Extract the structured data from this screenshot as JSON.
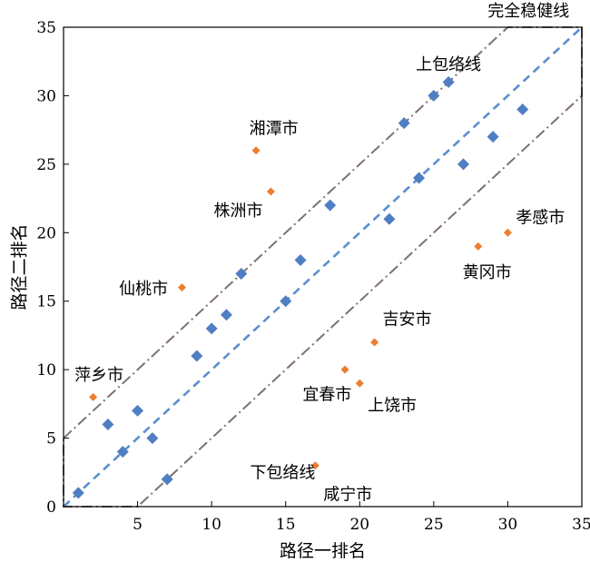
{
  "chart_data": {
    "type": "scatter",
    "title": "",
    "xlabel": "路径一排名",
    "ylabel": "路径二排名",
    "xlim": [
      0,
      35
    ],
    "ylim": [
      0,
      35
    ],
    "xticks": [
      "5",
      "10",
      "15",
      "20",
      "25",
      "30",
      "35"
    ],
    "yticks": [
      "0",
      "5",
      "10",
      "15",
      "20",
      "25",
      "30",
      "35"
    ],
    "grid": false,
    "colors": {
      "main": "#4f7ec2",
      "outlier": "#ed7d31",
      "band": "#7f7070",
      "fit": "#5b8fcf"
    },
    "series": [
      {
        "values": [
          [
            1,
            1
          ],
          [
            3,
            6
          ],
          [
            4,
            4
          ],
          [
            5,
            7
          ],
          [
            6,
            5
          ],
          [
            7,
            2
          ],
          [
            9,
            11
          ],
          [
            10,
            13
          ],
          [
            11,
            14
          ],
          [
            12,
            17
          ],
          [
            15,
            15
          ],
          [
            16,
            18
          ],
          [
            18,
            22
          ],
          [
            22,
            21
          ],
          [
            23,
            28
          ],
          [
            24,
            24
          ],
          [
            25,
            30
          ],
          [
            26,
            31
          ],
          [
            27,
            25
          ],
          [
            29,
            27
          ],
          [
            31,
            29
          ]
        ]
      },
      {
        "values": [
          [
            2,
            8
          ],
          [
            8,
            16
          ],
          [
            13,
            26
          ],
          [
            14,
            23
          ],
          [
            17,
            3
          ],
          [
            19,
            10
          ],
          [
            20,
            9
          ],
          [
            21,
            12
          ],
          [
            28,
            19
          ],
          [
            30,
            20
          ]
        ]
      }
    ],
    "reference_lines": [
      {
        "style": "dashed",
        "points": [
          [
            0,
            0
          ],
          [
            35,
            35
          ]
        ]
      },
      {
        "style": "dash-dot",
        "points": [
          [
            0,
            5
          ],
          [
            30,
            35
          ],
          [
            35,
            35
          ],
          [
            35,
            30
          ],
          [
            5,
            0
          ],
          [
            0,
            0
          ]
        ]
      }
    ],
    "annotations": [
      {
        "text": "完全稳健线",
        "x": 31.4,
        "y": 35.8
      },
      {
        "text": "上包络线",
        "x": 26,
        "y": 31.9
      },
      {
        "text": "下包络线",
        "x": 14.8,
        "y": 2.1
      },
      {
        "text": "湘潭市",
        "x": 14.2,
        "y": 27.2
      },
      {
        "text": "株洲市",
        "x": 11.8,
        "y": 21.2
      },
      {
        "text": "孝感市",
        "x": 32.2,
        "y": 20.7
      },
      {
        "text": "黄冈市",
        "x": 28.6,
        "y": 16.7
      },
      {
        "text": "仙桃市",
        "x": 5.4,
        "y": 15.5
      },
      {
        "text": "吉安市",
        "x": 23.2,
        "y": 13.3
      },
      {
        "text": "萍乡市",
        "x": 2.4,
        "y": 9.2
      },
      {
        "text": "宜春市",
        "x": 17.8,
        "y": 7.8
      },
      {
        "text": "上饶市",
        "x": 22.2,
        "y": 7.0
      },
      {
        "text": "咸宁市",
        "x": 19.2,
        "y": 0.5
      }
    ]
  }
}
